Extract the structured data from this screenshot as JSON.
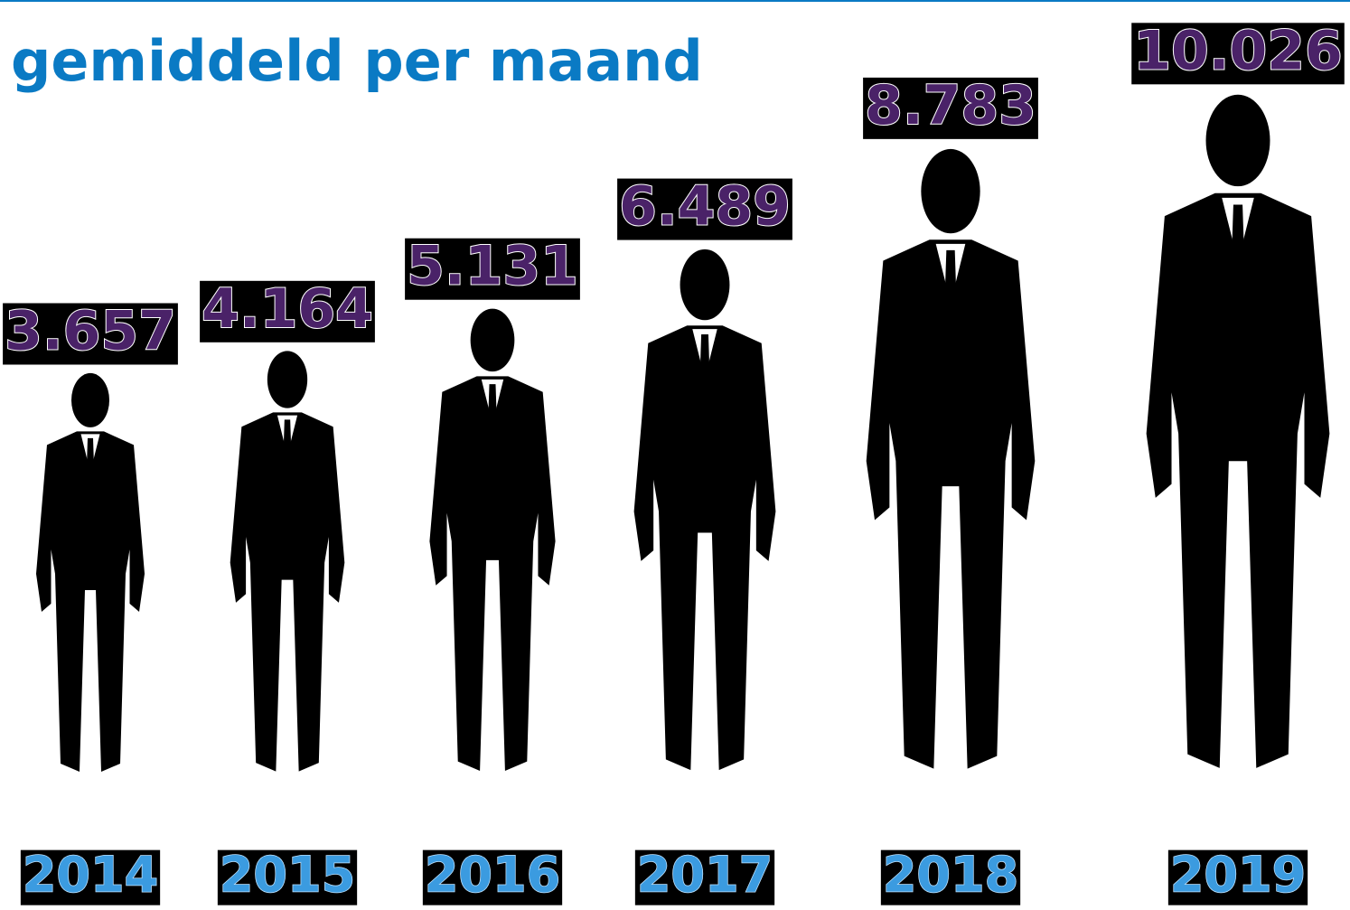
{
  "chart_data": {
    "type": "pictogram",
    "title": "gemiddeld per maand",
    "categories": [
      "2014",
      "2015",
      "2016",
      "2017",
      "2018",
      "2019"
    ],
    "values": [
      3657,
      4164,
      5131,
      6489,
      8783,
      10026
    ],
    "value_labels": [
      "3.657",
      "4.164",
      "5.131",
      "6.489",
      "8.783",
      "10.026"
    ],
    "color": "#000000"
  }
}
